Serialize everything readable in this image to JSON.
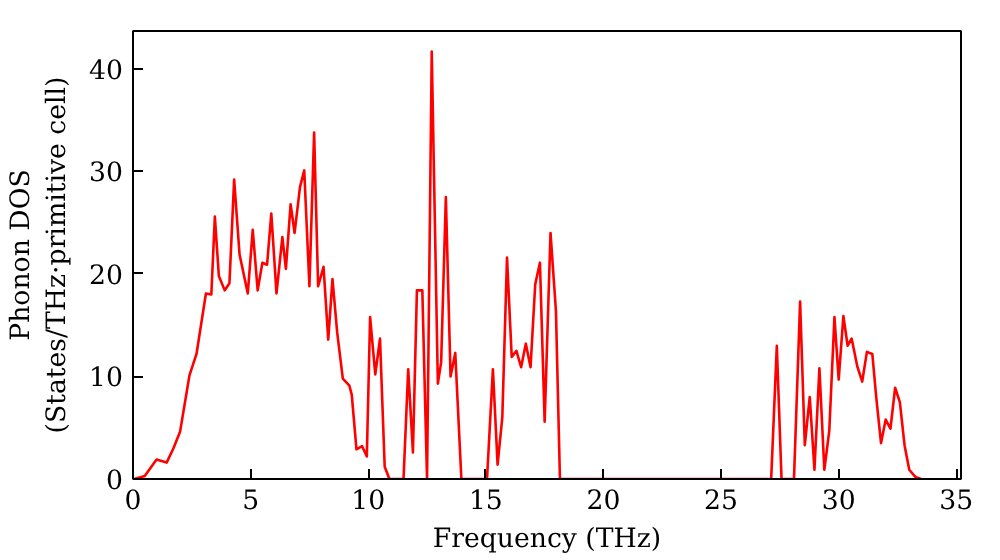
{
  "chart_data": {
    "type": "line",
    "xlabel": "Frequency (THz)",
    "ylabel": "Phonon DOS\n(States/THz·primitive cell)",
    "xlim": [
      0,
      35.2
    ],
    "ylim": [
      0,
      43.7
    ],
    "xticks": [
      0,
      5,
      10,
      15,
      20,
      25,
      30,
      35
    ],
    "yticks": [
      0,
      10,
      20,
      30,
      40
    ],
    "grid": false,
    "series": [
      {
        "color": "#ff0000",
        "x": [
          0.06,
          0.5,
          1.0,
          1.43,
          1.72,
          2.0,
          2.4,
          2.7,
          3.1,
          3.33,
          3.48,
          3.65,
          3.9,
          4.1,
          4.3,
          4.53,
          4.88,
          5.09,
          5.3,
          5.5,
          5.7,
          5.88,
          6.1,
          6.35,
          6.5,
          6.7,
          6.87,
          7.1,
          7.28,
          7.5,
          7.7,
          7.87,
          8.1,
          8.3,
          8.48,
          8.68,
          8.92,
          9.2,
          9.3,
          9.5,
          9.74,
          9.94,
          10.08,
          10.3,
          10.5,
          10.7,
          10.9,
          11.5,
          11.7,
          11.9,
          12.07,
          12.3,
          12.5,
          12.7,
          12.96,
          13.1,
          13.3,
          13.5,
          13.7,
          13.96,
          15.05,
          15.3,
          15.5,
          15.7,
          15.9,
          16.1,
          16.3,
          16.5,
          16.7,
          16.9,
          17.1,
          17.3,
          17.5,
          17.75,
          17.98,
          18.15,
          27.13,
          27.37,
          27.57,
          28.1,
          28.36,
          28.56,
          28.77,
          28.97,
          29.18,
          29.39,
          29.6,
          29.82,
          30.0,
          30.2,
          30.38,
          30.55,
          30.79,
          31.0,
          31.2,
          31.43,
          31.6,
          31.8,
          32.0,
          32.2,
          32.4,
          32.6,
          32.8,
          33.0,
          33.26,
          33.5
        ],
        "values": [
          0,
          0.3,
          1.9,
          1.6,
          3.0,
          4.6,
          10.1,
          12.2,
          18.1,
          18.0,
          25.6,
          19.8,
          18.4,
          19.1,
          29.2,
          21.9,
          18.1,
          24.3,
          18.4,
          21.1,
          20.9,
          25.9,
          18.1,
          23.6,
          20.5,
          26.8,
          24.0,
          28.5,
          30.1,
          18.8,
          33.8,
          18.8,
          20.7,
          13.6,
          19.5,
          14.3,
          9.8,
          9.1,
          8.2,
          2.9,
          3.2,
          2.2,
          15.8,
          10.2,
          13.7,
          1.2,
          0,
          0,
          10.7,
          2.6,
          18.4,
          18.4,
          0,
          41.7,
          9.3,
          11.4,
          27.5,
          10.0,
          12.3,
          0,
          0,
          10.7,
          1.4,
          6.0,
          21.6,
          11.9,
          12.5,
          10.9,
          13.2,
          10.9,
          19.0,
          21.1,
          5.6,
          24.0,
          16.4,
          0,
          0,
          13.0,
          0,
          0,
          17.3,
          3.3,
          8.0,
          0.9,
          10.8,
          0.9,
          4.7,
          15.8,
          9.7,
          15.9,
          13.0,
          13.7,
          11.0,
          9.5,
          12.4,
          12.2,
          7.9,
          3.5,
          5.8,
          4.9,
          8.9,
          7.5,
          3.3,
          0.9,
          0.2,
          0
        ]
      }
    ]
  }
}
